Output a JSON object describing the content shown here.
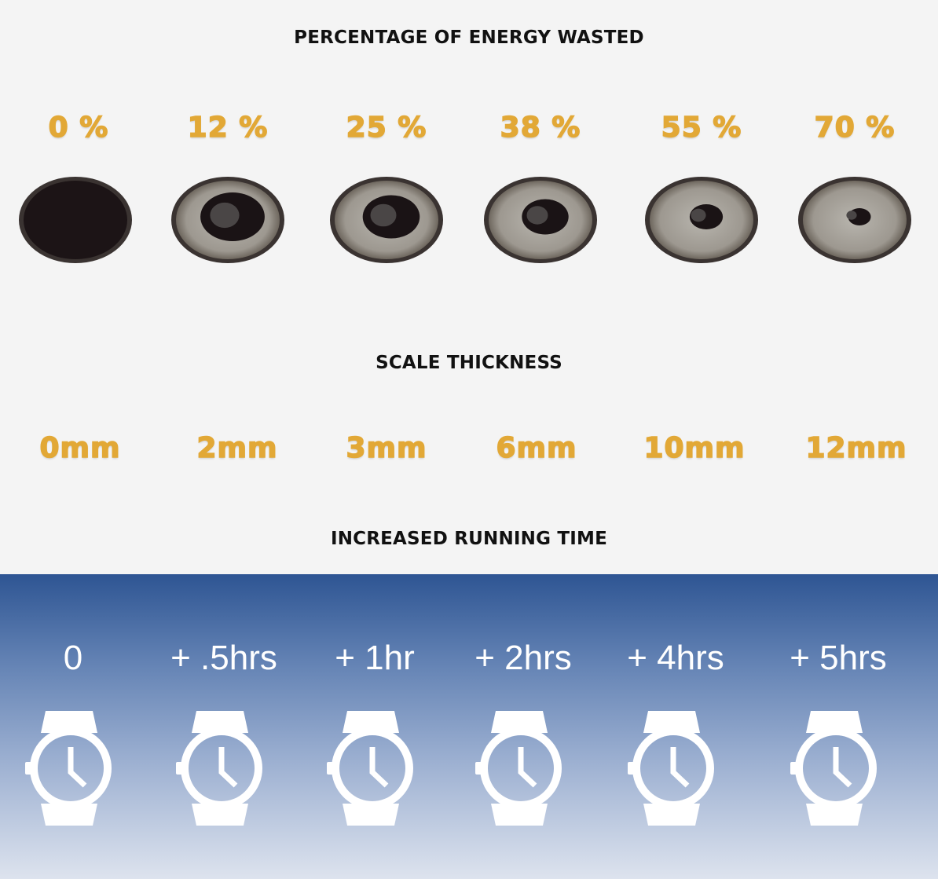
{
  "sections": {
    "energy_title": "PERCENTAGE OF ENERGY WASTED",
    "scale_title": "SCALE THICKNESS",
    "time_title": "INCREASED RUNNING TIME"
  },
  "energy_wasted": [
    "0 %",
    "12 %",
    "25 %",
    "38 %",
    "55 %",
    "70 %"
  ],
  "scale_thickness": [
    "0mm",
    "2mm",
    "3mm",
    "6mm",
    "10mm",
    "12mm"
  ],
  "running_time": [
    "0",
    "+ .5hrs",
    "+ 1hr",
    "+ 2hrs",
    "+ 4hrs",
    "+ 5hrs"
  ],
  "icons": {
    "pipe": "pipe-cross-section-icon",
    "watch": "watch-icon"
  },
  "colors": {
    "accent": "#e2a836",
    "band_top": "#2e5593",
    "band_bottom": "#dde3ee"
  }
}
